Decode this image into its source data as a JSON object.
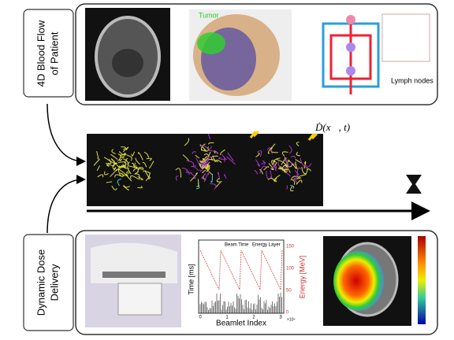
{
  "top_panel": {
    "label_lines": [
      "4D Blood Flow",
      "of Patient"
    ],
    "tumor_label": "Tumor",
    "lymph_label": "Lymph nodes"
  },
  "dose_label": "Ḋ(x⃗, t)",
  "bottom_panel": {
    "label_lines": [
      "Dynamic Dose",
      "Delivery"
    ],
    "plot": {
      "legend": [
        "Beam Time",
        "Energy Layer"
      ],
      "y_label": "Time [ms]",
      "y2_label": "Energy [MeV]",
      "x_label": "Beamlet Index",
      "x_ticks": [
        "0",
        "1",
        "2",
        "3"
      ],
      "x_multiplier": "×10⁴",
      "y2_ticks": [
        "0",
        "50",
        "100",
        "150"
      ]
    }
  }
}
